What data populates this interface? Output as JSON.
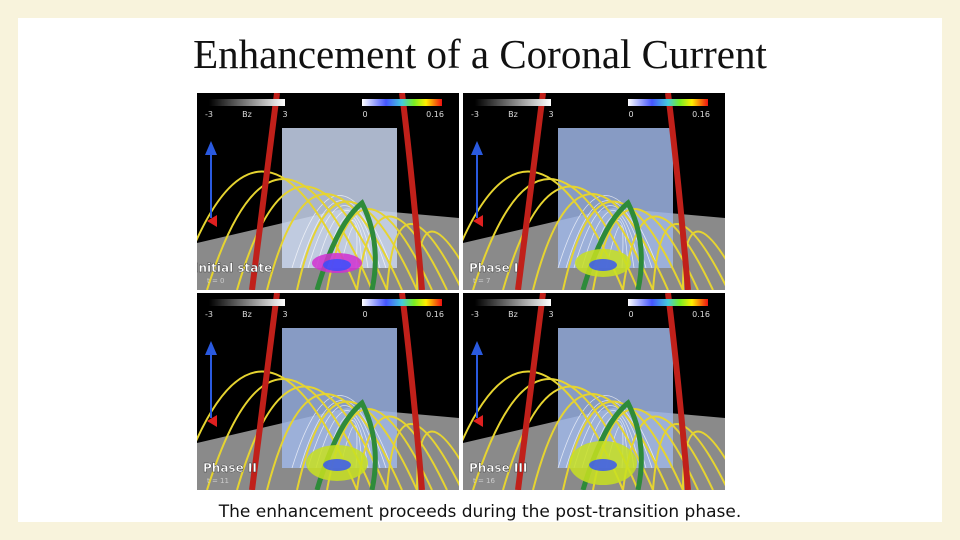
{
  "title": "Enhancement of a Coronal Current",
  "colorbars": {
    "bz": {
      "min": "-3",
      "name": "Bz",
      "max": "3"
    },
    "j": {
      "min": "0",
      "max": "0.16"
    }
  },
  "panels": [
    {
      "label": "Initial state",
      "time": "t = 0"
    },
    {
      "label": "Phase I",
      "time": "t = 7"
    },
    {
      "label": "Phase II",
      "time": "t = 11"
    },
    {
      "label": "Phase III",
      "time": "t = 16"
    }
  ],
  "caption": "The enhancement proceeds during the post-transition phase."
}
